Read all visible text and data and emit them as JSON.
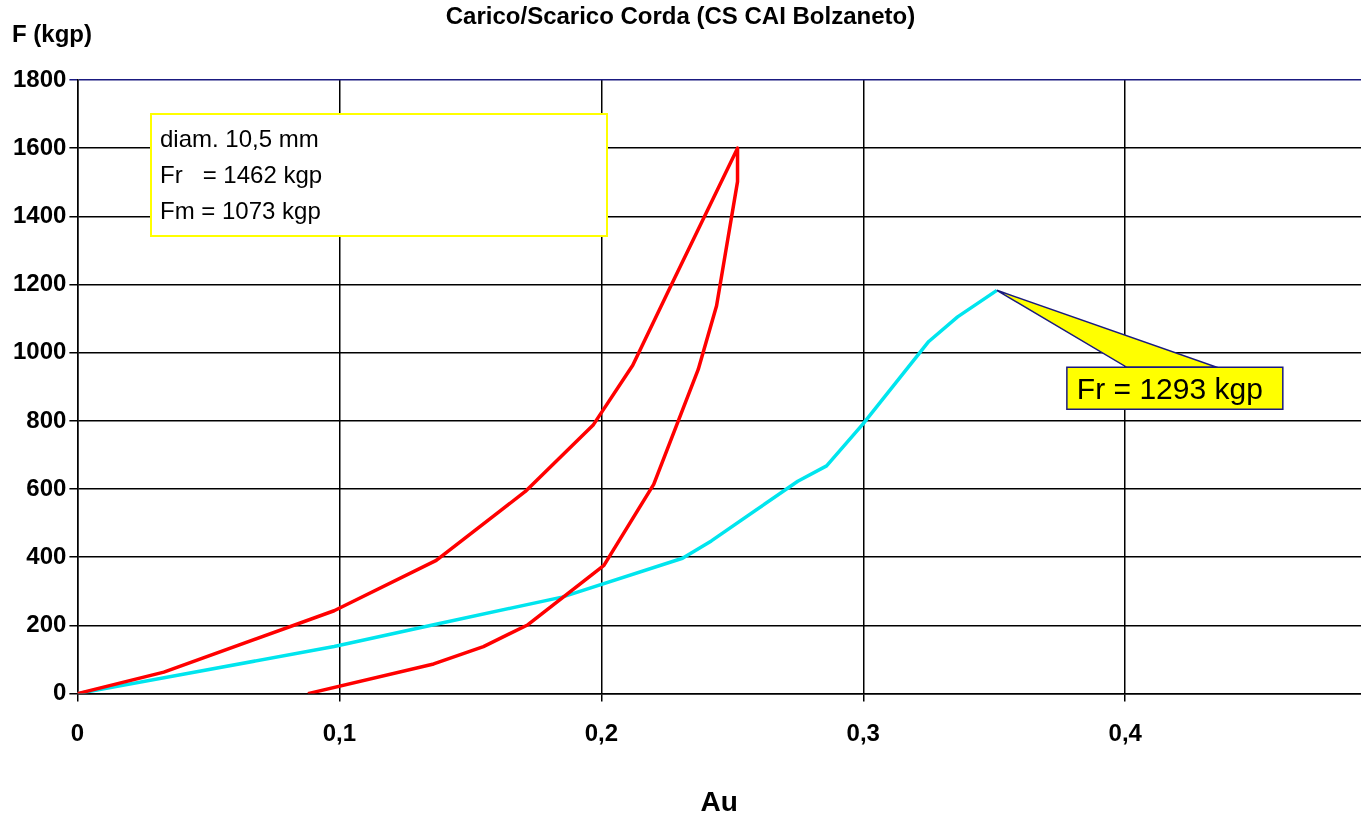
{
  "chart_data": {
    "type": "line",
    "title": "Carico/Scarico Corda (CS CAI Bolzaneto)",
    "xlabel": "Au",
    "ylabel": "F (kgp)",
    "xlim": [
      0,
      0.49
    ],
    "xticks": [
      {
        "value": 0,
        "label": "0"
      },
      {
        "value": 0.1,
        "label": "0,1"
      },
      {
        "value": 0.2,
        "label": "0,2"
      },
      {
        "value": 0.3,
        "label": "0,3"
      },
      {
        "value": 0.4,
        "label": "0,4"
      }
    ],
    "ylim": [
      0,
      1800
    ],
    "yticks": [
      0,
      200,
      400,
      600,
      800,
      1000,
      1200,
      1400,
      1600,
      1800
    ],
    "grid": true,
    "legend": false,
    "marker": "none",
    "line_style": "solid",
    "series": [
      {
        "color": "#ff0000",
        "x": [
          0,
          0.033,
          0.098,
          0.137,
          0.171,
          0.197,
          0.212,
          0.228,
          0.252,
          0.252,
          0.244,
          0.237,
          0.22,
          0.201,
          0.172,
          0.155,
          0.136,
          0.088
        ],
        "values": [
          0,
          63,
          243,
          391,
          593,
          789,
          963,
          1219,
          1600,
          1502,
          1138,
          951,
          614,
          376,
          202,
          138,
          87,
          0
        ]
      },
      {
        "color": "#00e5ee",
        "x": [
          0,
          0.098,
          0.136,
          0.185,
          0.231,
          0.242,
          0.275,
          0.286,
          0.3,
          0.325,
          0.336,
          0.351
        ],
        "values": [
          0,
          138,
          202,
          283,
          397,
          448,
          623,
          668,
          792,
          1033,
          1105,
          1183
        ]
      }
    ],
    "annotations": [
      "diam. 10,5 mm\nFr   = 1462 kgp\nFm = 1073 kgp",
      {
        "text": "Fr = 1293 kgp",
        "x": 0.351,
        "y": 1183
      }
    ]
  }
}
